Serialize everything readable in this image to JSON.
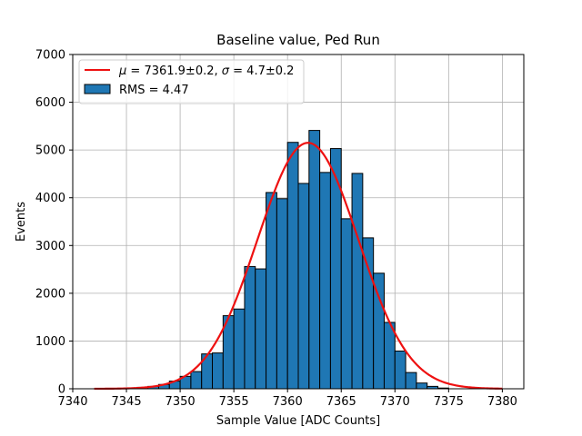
{
  "chart_data": {
    "type": "bar",
    "title": "Baseline value, Ped Run",
    "xlabel": "Sample Value [ADC Counts]",
    "ylabel": "Events",
    "xlim": [
      7340,
      7382
    ],
    "ylim": [
      0,
      7000
    ],
    "xticks": [
      7340,
      7345,
      7350,
      7355,
      7360,
      7365,
      7370,
      7375,
      7380
    ],
    "yticks": [
      0,
      1000,
      2000,
      3000,
      4000,
      5000,
      6000,
      7000
    ],
    "grid": true,
    "legend_position": "top-left",
    "histogram": {
      "bin_width": 1,
      "bins": [
        {
          "x0": 7346,
          "value": 30
        },
        {
          "x0": 7347,
          "value": 50
        },
        {
          "x0": 7348,
          "value": 90
        },
        {
          "x0": 7349,
          "value": 160
        },
        {
          "x0": 7350,
          "value": 260
        },
        {
          "x0": 7351,
          "value": 360
        },
        {
          "x0": 7352,
          "value": 730
        },
        {
          "x0": 7353,
          "value": 750
        },
        {
          "x0": 7354,
          "value": 1530
        },
        {
          "x0": 7355,
          "value": 1670
        },
        {
          "x0": 7356,
          "value": 2560
        },
        {
          "x0": 7357,
          "value": 2510
        },
        {
          "x0": 7358,
          "value": 4110
        },
        {
          "x0": 7359,
          "value": 3980
        },
        {
          "x0": 7360,
          "value": 5160
        },
        {
          "x0": 7361,
          "value": 4300
        },
        {
          "x0": 7362,
          "value": 5410
        },
        {
          "x0": 7363,
          "value": 4530
        },
        {
          "x0": 7364,
          "value": 5030
        },
        {
          "x0": 7365,
          "value": 3560
        },
        {
          "x0": 7366,
          "value": 4510
        },
        {
          "x0": 7367,
          "value": 3160
        },
        {
          "x0": 7368,
          "value": 2420
        },
        {
          "x0": 7369,
          "value": 1390
        },
        {
          "x0": 7370,
          "value": 790
        },
        {
          "x0": 7371,
          "value": 340
        },
        {
          "x0": 7372,
          "value": 120
        },
        {
          "x0": 7373,
          "value": 50
        },
        {
          "x0": 7374,
          "value": 15
        }
      ],
      "fill_color": "#1f77b4",
      "edge_color": "#000000"
    },
    "fit": {
      "mu": 7361.9,
      "sigma": 4.7,
      "amplitude": 5150,
      "x_range": [
        7342,
        7380
      ],
      "color": "#ee1111"
    },
    "legend": [
      {
        "kind": "line",
        "label_prefix": "μ",
        "label_middle": " = 7361.9±0.2, ",
        "label_sigma": "σ",
        "label_suffix": " = 4.7±0.2",
        "color": "#ee1111"
      },
      {
        "kind": "patch",
        "label": "RMS = 4.47",
        "color": "#1f77b4"
      }
    ]
  }
}
